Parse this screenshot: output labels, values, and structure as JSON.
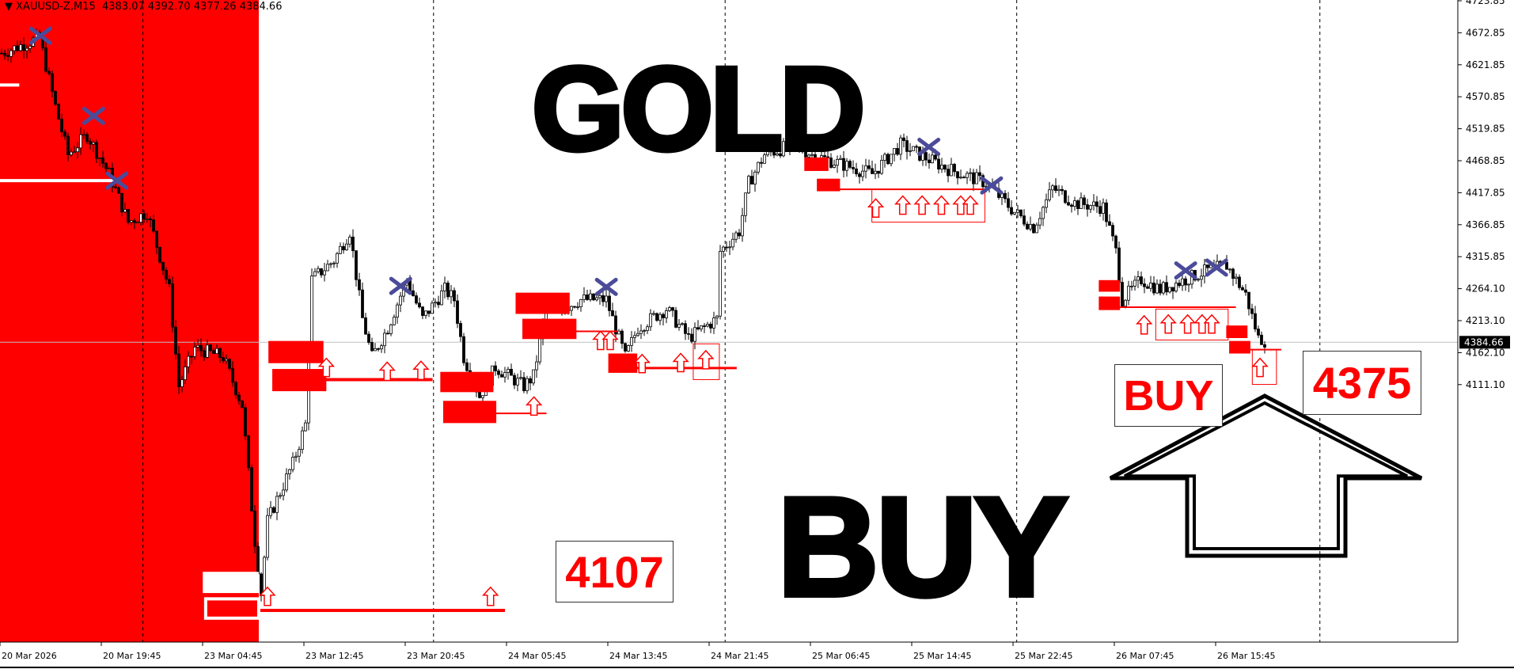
{
  "header": {
    "symbol": "XAUUSD-Z,M15",
    "open": "4383.07",
    "high": "4392.70",
    "low": "4377.26",
    "close": "4384.66"
  },
  "annotations": {
    "gold_label": "GOLD",
    "buy_label": "BUY",
    "box_4107": "4107",
    "box_buy": "BUY",
    "box_4375": "4375"
  },
  "colors": {
    "zone": "#ff0000",
    "cross": "#4b4b9a",
    "candle": "#000000",
    "current_line": "#c0c0c0"
  },
  "chart_data": {
    "type": "candlestick",
    "timeframe": "M15",
    "y_ticks": [
      "4723.85",
      "4672.85",
      "4621.85",
      "4570.85",
      "4519.85",
      "4468.85",
      "4417.85",
      "4366.85",
      "4315.85",
      "4264.10",
      "4213.10",
      "4162.10",
      "4111.10"
    ],
    "current_price": "4384.66",
    "x_ticks": [
      "20 Mar 2026",
      "20 Mar 19:45",
      "23 Mar 04:45",
      "23 Mar 12:45",
      "23 Mar 20:45",
      "24 Mar 05:45",
      "24 Mar 13:45",
      "24 Mar 21:45",
      "25 Mar 06:45",
      "25 Mar 14:45",
      "25 Mar 22:45",
      "26 Mar 07:45",
      "26 Mar 15:45"
    ],
    "ylim": [
      4100,
      4724
    ],
    "close_path_bar_price": [
      [
        0,
        4672
      ],
      [
        12,
        4687
      ],
      [
        17,
        4619
      ],
      [
        21,
        4571
      ],
      [
        27,
        4591
      ],
      [
        34,
        4552
      ],
      [
        40,
        4504
      ],
      [
        46,
        4514
      ],
      [
        53,
        4437
      ],
      [
        56,
        4341
      ],
      [
        61,
        4379
      ],
      [
        70,
        4370
      ],
      [
        76,
        4322
      ],
      [
        80,
        4187
      ],
      [
        82,
        4135
      ],
      [
        84,
        4207
      ],
      [
        92,
        4264
      ],
      [
        96,
        4303
      ],
      [
        98,
        4447
      ],
      [
        105,
        4466
      ],
      [
        110,
        4495
      ],
      [
        114,
        4408
      ],
      [
        117,
        4370
      ],
      [
        122,
        4399
      ],
      [
        128,
        4447
      ],
      [
        133,
        4408
      ],
      [
        140,
        4437
      ],
      [
        143,
        4427
      ],
      [
        146,
        4370
      ],
      [
        151,
        4331
      ],
      [
        156,
        4360
      ],
      [
        165,
        4341
      ],
      [
        168,
        4351
      ],
      [
        172,
        4418
      ],
      [
        177,
        4418
      ],
      [
        183,
        4427
      ],
      [
        191,
        4427
      ],
      [
        197,
        4370
      ],
      [
        201,
        4399
      ],
      [
        210,
        4418
      ],
      [
        217,
        4389
      ],
      [
        226,
        4408
      ],
      [
        227,
        4475
      ],
      [
        233,
        4495
      ],
      [
        236,
        4543
      ],
      [
        241,
        4571
      ],
      [
        250,
        4581
      ],
      [
        256,
        4571
      ],
      [
        265,
        4562
      ],
      [
        275,
        4552
      ],
      [
        284,
        4581
      ],
      [
        290,
        4571
      ],
      [
        299,
        4557
      ],
      [
        311,
        4543
      ],
      [
        320,
        4514
      ],
      [
        326,
        4499
      ],
      [
        332,
        4538
      ],
      [
        339,
        4523
      ],
      [
        348,
        4519
      ],
      [
        352,
        4475
      ],
      [
        354,
        4427
      ],
      [
        360,
        4447
      ],
      [
        366,
        4437
      ],
      [
        374,
        4447
      ],
      [
        381,
        4456
      ],
      [
        387,
        4461
      ],
      [
        393,
        4432
      ],
      [
        397,
        4389
      ],
      [
        400,
        4385
      ]
    ]
  }
}
